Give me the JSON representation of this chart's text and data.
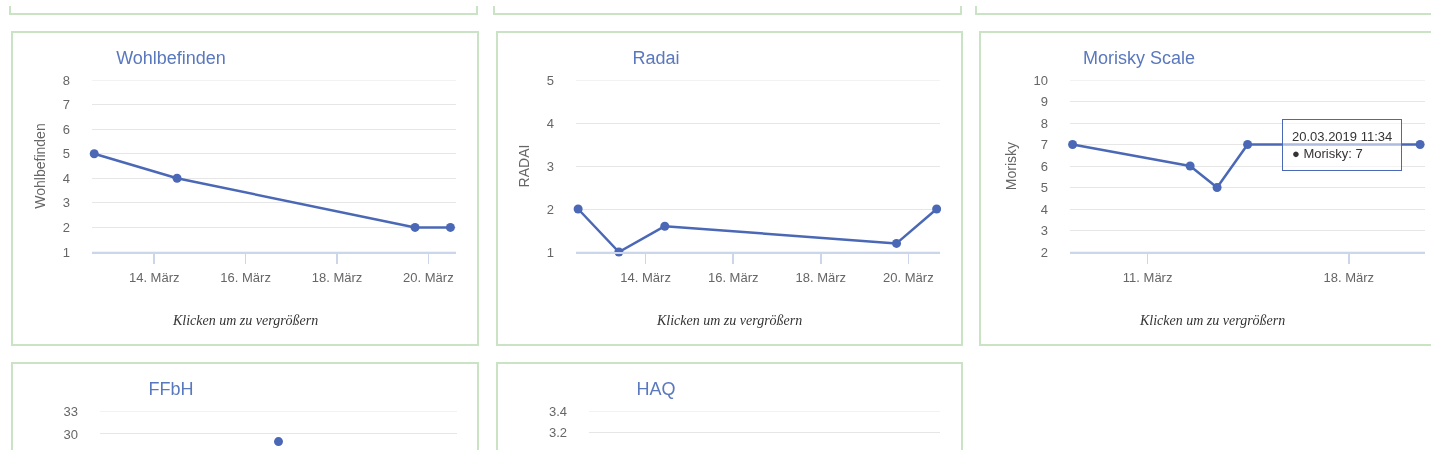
{
  "chart_data": [
    {
      "type": "line",
      "title": "Wohlbefinden",
      "ylabel": "Wohlbefinden",
      "x": [
        "2019-03-12T16:30",
        "2019-03-14T12:00",
        "2019-03-19T17:00",
        "2019-03-20T11:34"
      ],
      "series": [
        {
          "color": "#4a68b5",
          "values": [
            5,
            4,
            2,
            2
          ]
        }
      ],
      "xlim": [
        "2019-03-12T15:20",
        "2019-03-20T14:30"
      ],
      "xticks": [
        {
          "value": "2019-03-14",
          "label": "14. März"
        },
        {
          "value": "2019-03-16",
          "label": "16. März"
        },
        {
          "value": "2019-03-18",
          "label": "18. März"
        },
        {
          "value": "2019-03-20",
          "label": "20. März"
        }
      ],
      "ylim": [
        1,
        8
      ],
      "yticks": [
        1,
        2,
        3,
        4,
        5,
        6,
        7,
        8
      ],
      "grid": "y",
      "marker": "circle",
      "line_style": "solid",
      "annotations": [
        "Klicken um zu vergrößern"
      ]
    },
    {
      "type": "line",
      "title": "Radai",
      "ylabel": "RADAI",
      "x": [
        "2019-03-12T11:00",
        "2019-03-13T09:20",
        "2019-03-14T10:30",
        "2019-03-19T17:30",
        "2019-03-20T15:30"
      ],
      "series": [
        {
          "color": "#4a68b5",
          "values": [
            2,
            1,
            1.6,
            1.2,
            2
          ]
        }
      ],
      "xlim": [
        "2019-03-12T09:50",
        "2019-03-20T17:20"
      ],
      "xticks": [
        {
          "value": "2019-03-14",
          "label": "14. März"
        },
        {
          "value": "2019-03-16",
          "label": "16. März"
        },
        {
          "value": "2019-03-18",
          "label": "18. März"
        },
        {
          "value": "2019-03-20",
          "label": "20. März"
        }
      ],
      "ylim": [
        1,
        5
      ],
      "yticks": [
        1,
        2,
        3,
        4,
        5
      ],
      "grid": "y",
      "marker": "circle",
      "line_style": "solid",
      "annotations": [
        "Klicken um zu vergrößern"
      ]
    },
    {
      "type": "line",
      "title": "Morisky Scale",
      "ylabel": "Morisky",
      "x": [
        "2019-03-08T09:20",
        "2019-03-12T11:30",
        "2019-03-13T10:00",
        "2019-03-14T11:30",
        "2019-03-20T11:34"
      ],
      "series": [
        {
          "color": "#4a68b5",
          "values": [
            7,
            6,
            5,
            7,
            7
          ]
        }
      ],
      "xlim": [
        "2019-03-08T07:10",
        "2019-03-20T15:40"
      ],
      "xticks": [
        {
          "value": "2019-03-11",
          "label": "11. März"
        },
        {
          "value": "2019-03-18",
          "label": "18. März"
        }
      ],
      "ylim": [
        2,
        10
      ],
      "yticks": [
        2,
        3,
        4,
        5,
        6,
        7,
        8,
        9,
        10
      ],
      "grid": "y",
      "marker": "circle",
      "line_style": "solid",
      "annotations": [
        {
          "text": "20.03.2019 11:34\n● Morisky: 7",
          "x": "2019-03-20T11:34",
          "y": 7
        },
        "Klicken um zu vergrößern"
      ]
    },
    {
      "type": "line",
      "title": "FFbH",
      "categories": [
        null
      ],
      "series": [
        {
          "color": "#4a68b5",
          "values": [
            29
          ]
        }
      ],
      "ylim": [
        27.9,
        33
      ],
      "yticks": [
        30,
        33
      ],
      "grid": "y",
      "marker": "circle",
      "line_style": "solid",
      "tick_labels": "y"
    },
    {
      "type": "line",
      "title": "HAQ",
      "categories": [
        null
      ],
      "series": [
        {
          "color": "#4a68b5",
          "values": [
            null
          ]
        }
      ],
      "ylim": [
        3.03,
        3.4
      ],
      "yticks": [
        3.2,
        3.4
      ],
      "grid": "y",
      "tick_labels": "y"
    }
  ]
}
